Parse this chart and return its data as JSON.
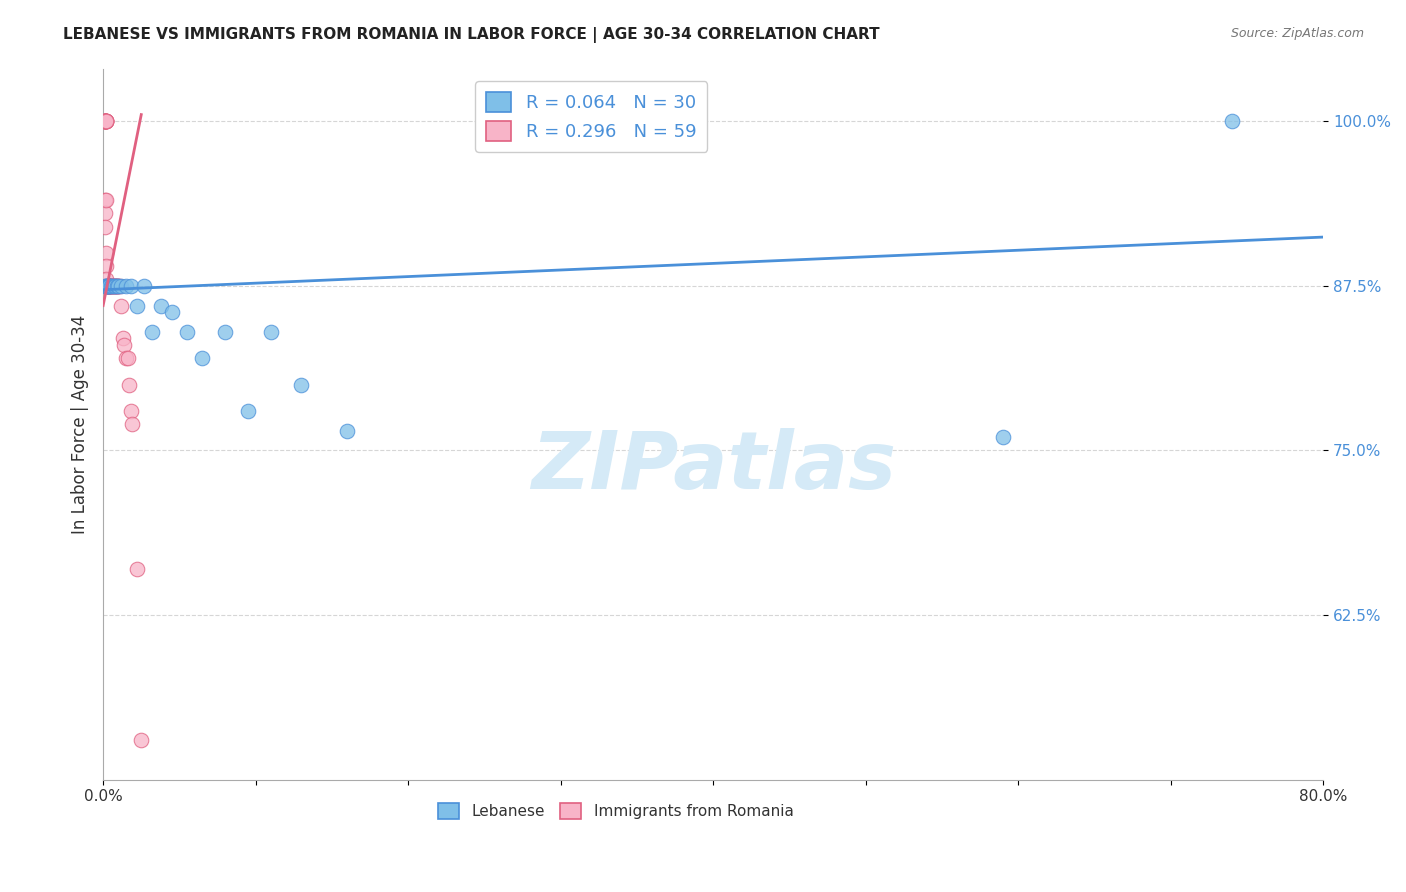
{
  "title": "LEBANESE VS IMMIGRANTS FROM ROMANIA IN LABOR FORCE | AGE 30-34 CORRELATION CHART",
  "source": "Source: ZipAtlas.com",
  "ylabel": "In Labor Force | Age 30-34",
  "xmin": 0.0,
  "xmax": 0.8,
  "ymin": 0.5,
  "ymax": 1.04,
  "legend_r1": "R = 0.064",
  "legend_n1": "N = 30",
  "legend_r2": "R = 0.296",
  "legend_n2": "N = 59",
  "color_blue": "#7fbfe8",
  "color_pink": "#f8b4c8",
  "color_blue_line": "#4a90d9",
  "color_pink_line": "#e06080",
  "watermark": "ZIPatlas",
  "watermark_color": "#d5eaf7",
  "blue_x": [
    0.001,
    0.002,
    0.002,
    0.003,
    0.003,
    0.004,
    0.004,
    0.005,
    0.006,
    0.007,
    0.008,
    0.009,
    0.01,
    0.012,
    0.015,
    0.018,
    0.022,
    0.027,
    0.032,
    0.038,
    0.045,
    0.055,
    0.065,
    0.08,
    0.095,
    0.11,
    0.13,
    0.16,
    0.59,
    0.74
  ],
  "blue_y": [
    0.875,
    0.875,
    0.875,
    0.875,
    0.875,
    0.875,
    0.875,
    0.875,
    0.875,
    0.875,
    0.875,
    0.875,
    0.875,
    0.875,
    0.875,
    0.875,
    0.86,
    0.875,
    0.84,
    0.86,
    0.855,
    0.84,
    0.82,
    0.84,
    0.78,
    0.84,
    0.8,
    0.765,
    0.76,
    1.0
  ],
  "pink_x": [
    0.001,
    0.001,
    0.001,
    0.001,
    0.001,
    0.001,
    0.001,
    0.001,
    0.001,
    0.001,
    0.002,
    0.002,
    0.002,
    0.002,
    0.002,
    0.002,
    0.002,
    0.002,
    0.002,
    0.002,
    0.002,
    0.003,
    0.003,
    0.003,
    0.003,
    0.003,
    0.004,
    0.004,
    0.004,
    0.004,
    0.004,
    0.004,
    0.004,
    0.005,
    0.005,
    0.005,
    0.005,
    0.006,
    0.006,
    0.007,
    0.007,
    0.008,
    0.008,
    0.008,
    0.009,
    0.009,
    0.01,
    0.01,
    0.011,
    0.012,
    0.013,
    0.014,
    0.015,
    0.016,
    0.017,
    0.018,
    0.019,
    0.022,
    0.025
  ],
  "pink_y": [
    1.0,
    1.0,
    1.0,
    1.0,
    1.0,
    1.0,
    1.0,
    0.94,
    0.93,
    0.92,
    1.0,
    1.0,
    1.0,
    1.0,
    1.0,
    1.0,
    0.94,
    0.9,
    0.89,
    0.88,
    0.875,
    0.875,
    0.875,
    0.875,
    0.875,
    0.875,
    0.875,
    0.875,
    0.875,
    0.875,
    0.875,
    0.875,
    0.875,
    0.875,
    0.875,
    0.875,
    0.875,
    0.875,
    0.875,
    0.875,
    0.875,
    0.875,
    0.875,
    0.875,
    0.875,
    0.875,
    0.875,
    0.875,
    0.875,
    0.86,
    0.835,
    0.83,
    0.82,
    0.82,
    0.8,
    0.78,
    0.77,
    0.66,
    0.53
  ],
  "blue_trend_x": [
    0.0,
    0.8
  ],
  "blue_trend_y": [
    0.872,
    0.912
  ],
  "pink_trend_x": [
    0.0,
    0.025
  ],
  "pink_trend_y": [
    0.86,
    1.005
  ]
}
